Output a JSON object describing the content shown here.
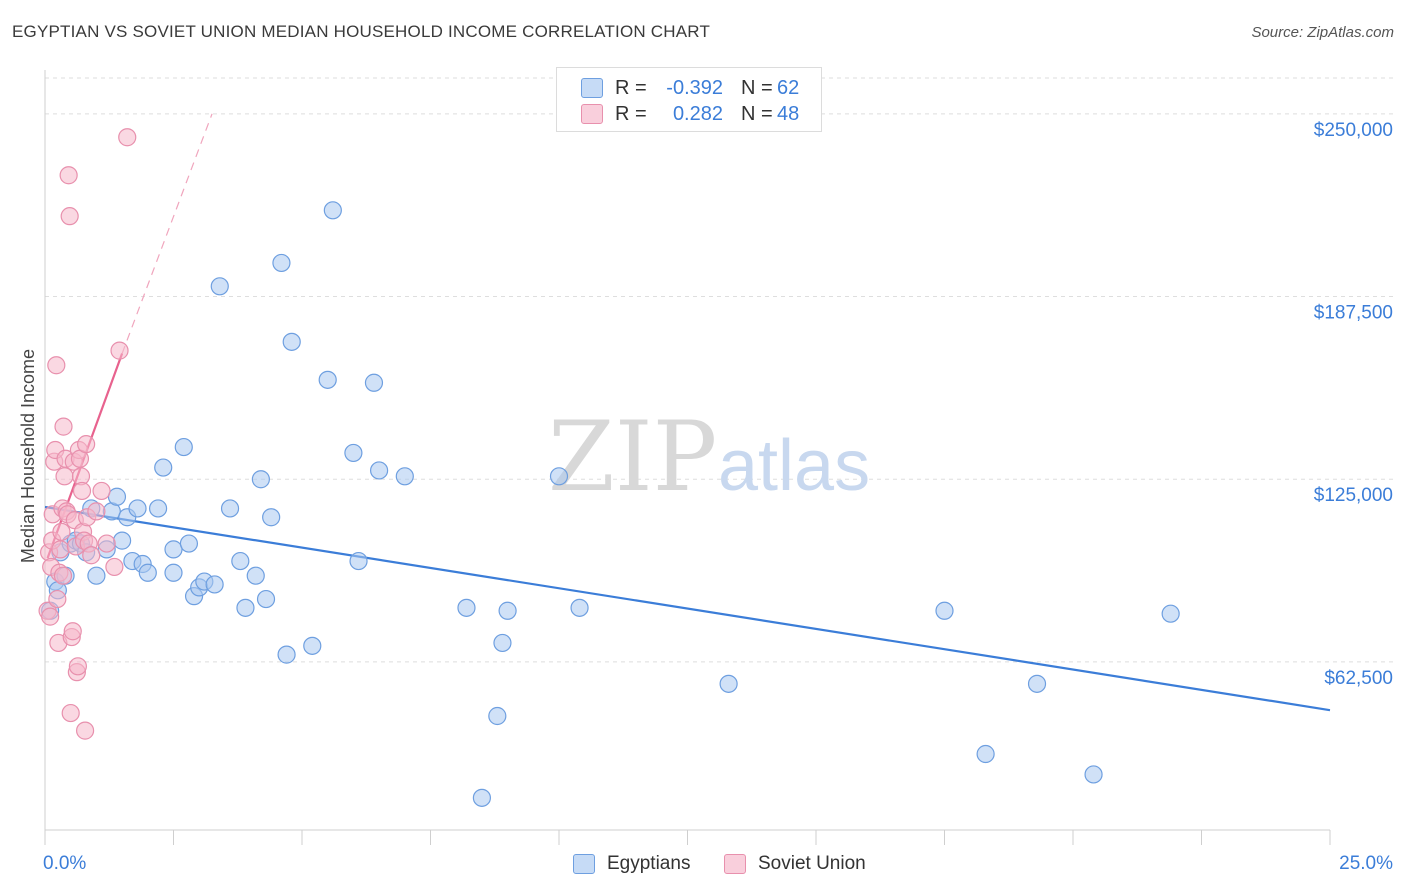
{
  "title": "EGYPTIAN VS SOVIET UNION MEDIAN HOUSEHOLD INCOME CORRELATION CHART",
  "source": "Source: ZipAtlas.com",
  "watermark": {
    "zip": "ZIP",
    "atlas": "atlas"
  },
  "legend": {
    "rows": [
      {
        "r_label": "R =",
        "r_value": "-0.392",
        "n_label": "N =",
        "n_value": "62",
        "color": "#a9c8f0"
      },
      {
        "r_label": "R =",
        "r_value": "0.282",
        "n_label": "N =",
        "n_value": "48",
        "color": "#f5b8cb"
      }
    ]
  },
  "bottom_legend": {
    "egyptians": {
      "label": "Egyptians",
      "color": "#a9c8f0"
    },
    "soviet": {
      "label": "Soviet Union",
      "color": "#f5b8cb"
    }
  },
  "chart_data": {
    "type": "scatter",
    "title": "EGYPTIAN VS SOVIET UNION MEDIAN HOUSEHOLD INCOME CORRELATION CHART",
    "xlabel": "",
    "ylabel": "Median Household Income",
    "xlim": [
      0,
      25
    ],
    "ylim": [
      5000,
      265000
    ],
    "x_tick_labels": [
      "0.0%",
      "25.0%"
    ],
    "y_ticks": [
      62500,
      125000,
      187500,
      250000
    ],
    "y_tick_labels": [
      "$62,500",
      "$125,000",
      "$187,500",
      "$250,000"
    ],
    "series": [
      {
        "name": "Egyptians",
        "color": "#3b7dd8",
        "fill": "#a9c8f0",
        "trend": {
          "x": [
            0,
            25
          ],
          "y": [
            115500,
            46000
          ]
        },
        "points": [
          [
            0.1,
            80000
          ],
          [
            0.2,
            90000
          ],
          [
            0.3,
            100000
          ],
          [
            0.4,
            92000
          ],
          [
            0.5,
            103000
          ],
          [
            0.6,
            104000
          ],
          [
            0.7,
            103000
          ],
          [
            0.8,
            100000
          ],
          [
            0.9,
            115000
          ],
          [
            1.0,
            92000
          ],
          [
            1.2,
            101000
          ],
          [
            1.3,
            114000
          ],
          [
            1.4,
            119000
          ],
          [
            1.5,
            104000
          ],
          [
            1.6,
            112000
          ],
          [
            1.7,
            97000
          ],
          [
            1.8,
            115000
          ],
          [
            1.9,
            96000
          ],
          [
            2.0,
            93000
          ],
          [
            2.2,
            115000
          ],
          [
            2.3,
            129000
          ],
          [
            2.5,
            93000
          ],
          [
            2.5,
            101000
          ],
          [
            2.7,
            136000
          ],
          [
            2.8,
            103000
          ],
          [
            2.9,
            85000
          ],
          [
            3.0,
            88000
          ],
          [
            3.1,
            90000
          ],
          [
            3.3,
            89000
          ],
          [
            3.4,
            191000
          ],
          [
            3.6,
            115000
          ],
          [
            3.8,
            97000
          ],
          [
            3.9,
            81000
          ],
          [
            4.1,
            92000
          ],
          [
            4.2,
            125000
          ],
          [
            4.3,
            84000
          ],
          [
            4.4,
            112000
          ],
          [
            4.6,
            199000
          ],
          [
            4.7,
            65000
          ],
          [
            4.8,
            172000
          ],
          [
            5.2,
            68000
          ],
          [
            5.5,
            159000
          ],
          [
            5.6,
            217000
          ],
          [
            6.0,
            134000
          ],
          [
            6.1,
            97000
          ],
          [
            6.4,
            158000
          ],
          [
            6.5,
            128000
          ],
          [
            7.0,
            126000
          ],
          [
            8.2,
            81000
          ],
          [
            8.5,
            16000
          ],
          [
            8.8,
            44000
          ],
          [
            8.9,
            69000
          ],
          [
            9.0,
            80000
          ],
          [
            10.0,
            126000
          ],
          [
            10.4,
            81000
          ],
          [
            13.3,
            55000
          ],
          [
            17.5,
            80000
          ],
          [
            18.3,
            31000
          ],
          [
            19.3,
            55000
          ],
          [
            20.4,
            24000
          ],
          [
            21.9,
            79000
          ],
          [
            0.25,
            87000
          ]
        ]
      },
      {
        "name": "Soviet Union",
        "color": "#e8628e",
        "fill": "#f5b8cb",
        "trend": {
          "x": [
            0.05,
            1.5
          ],
          "y": [
            98000,
            168000
          ]
        },
        "trend_dashed": {
          "x": [
            1.5,
            3.25
          ],
          "y": [
            168000,
            250000
          ]
        },
        "points": [
          [
            0.05,
            80000
          ],
          [
            0.08,
            100000
          ],
          [
            0.1,
            78000
          ],
          [
            0.12,
            95000
          ],
          [
            0.14,
            104000
          ],
          [
            0.15,
            113000
          ],
          [
            0.18,
            131000
          ],
          [
            0.2,
            135000
          ],
          [
            0.22,
            164000
          ],
          [
            0.24,
            84000
          ],
          [
            0.26,
            69000
          ],
          [
            0.28,
            93000
          ],
          [
            0.3,
            101000
          ],
          [
            0.32,
            107000
          ],
          [
            0.34,
            115000
          ],
          [
            0.36,
            143000
          ],
          [
            0.38,
            126000
          ],
          [
            0.4,
            132000
          ],
          [
            0.42,
            114000
          ],
          [
            0.44,
            113000
          ],
          [
            0.46,
            229000
          ],
          [
            0.48,
            215000
          ],
          [
            0.5,
            45000
          ],
          [
            0.52,
            71000
          ],
          [
            0.54,
            73000
          ],
          [
            0.56,
            131000
          ],
          [
            0.58,
            111000
          ],
          [
            0.6,
            102000
          ],
          [
            0.62,
            59000
          ],
          [
            0.64,
            61000
          ],
          [
            0.66,
            135000
          ],
          [
            0.68,
            132000
          ],
          [
            0.7,
            126000
          ],
          [
            0.72,
            121000
          ],
          [
            0.74,
            107000
          ],
          [
            0.76,
            104000
          ],
          [
            0.78,
            39000
          ],
          [
            0.8,
            137000
          ],
          [
            0.82,
            112000
          ],
          [
            0.85,
            103000
          ],
          [
            0.9,
            99000
          ],
          [
            1.0,
            114000
          ],
          [
            1.1,
            121000
          ],
          [
            1.2,
            103000
          ],
          [
            1.35,
            95000
          ],
          [
            1.45,
            169000
          ],
          [
            1.6,
            242000
          ],
          [
            0.35,
            92000
          ]
        ]
      }
    ]
  }
}
